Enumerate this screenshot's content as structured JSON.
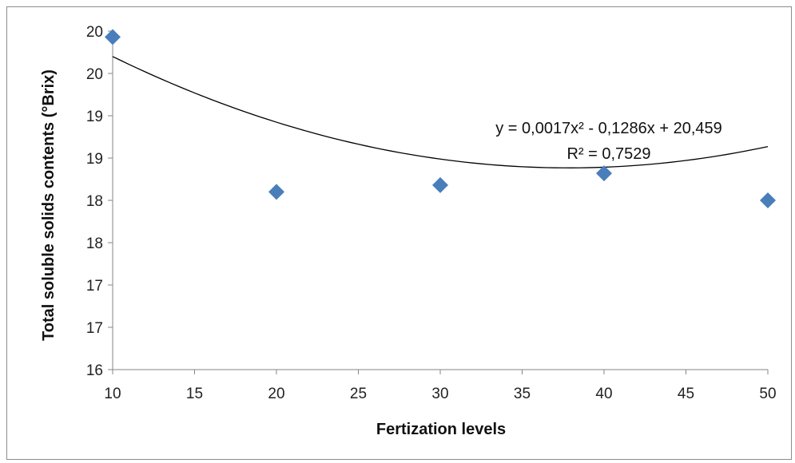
{
  "chart_data": {
    "type": "scatter",
    "xlabel": "Fertization levels",
    "ylabel": "Total soluble solids contents (°Brix)",
    "xlim": [
      10,
      50
    ],
    "ylim": [
      16,
      20
    ],
    "x_ticks": [
      "10",
      "15",
      "20",
      "25",
      "30",
      "35",
      "40",
      "45",
      "50"
    ],
    "y_ticks": [
      "16",
      "17",
      "17",
      "18",
      "18",
      "19",
      "19",
      "20",
      "20"
    ],
    "points": [
      {
        "x": 10,
        "y": 19.93
      },
      {
        "x": 20,
        "y": 18.1
      },
      {
        "x": 30,
        "y": 18.18
      },
      {
        "x": 40,
        "y": 18.32
      },
      {
        "x": 50,
        "y": 18.0
      }
    ],
    "marker_color": "#4a7ebb",
    "trendline": {
      "type": "polynomial",
      "equation": "y = 0,0017x² - 0,1286x + 20,459",
      "r_squared": "R² = 0,7529",
      "coefficients": [
        0.0017,
        -0.1286,
        20.459
      ],
      "color": "#000000"
    },
    "grid": false,
    "legend": "none"
  }
}
